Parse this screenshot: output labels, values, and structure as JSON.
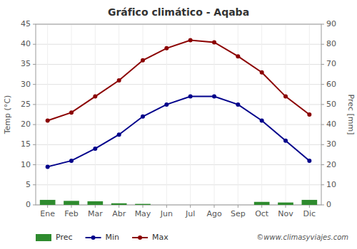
{
  "chart_data": {
    "type": "bar",
    "title": "Gráfico climático - Aqaba",
    "categories": [
      "Ene",
      "Feb",
      "Mar",
      "Abr",
      "May",
      "Jun",
      "Jul",
      "Ago",
      "Sep",
      "Oct",
      "Nov",
      "Dic"
    ],
    "series": [
      {
        "name": "Prec",
        "type": "bar",
        "axis": "y2",
        "color": "#2e8b2e",
        "values": [
          2.5,
          2.0,
          1.8,
          0.8,
          0.5,
          0,
          0,
          0,
          0,
          1.5,
          1.2,
          2.5
        ]
      },
      {
        "name": "Min",
        "type": "line",
        "marker": "circle",
        "color": "#00008b",
        "values": [
          9.5,
          11,
          14,
          17.5,
          22,
          25,
          27,
          27,
          25,
          21,
          16,
          11
        ]
      },
      {
        "name": "Max",
        "type": "line",
        "marker": "circle",
        "color": "#8b0000",
        "values": [
          21,
          23,
          27,
          31,
          36,
          39,
          41,
          40.5,
          37,
          33,
          27,
          22.5
        ]
      }
    ],
    "ylabel": "Temp (°C)",
    "y2label": "Prec [mm]",
    "ylim": [
      0,
      45
    ],
    "yticks": [
      0,
      5,
      10,
      15,
      20,
      25,
      30,
      35,
      40,
      45
    ],
    "y2lim": [
      0,
      90
    ],
    "y2ticks": [
      0,
      10,
      20,
      30,
      40,
      50,
      60,
      70,
      80,
      90
    ],
    "grid": true,
    "legend": "bottom",
    "annotations": [
      "©www.climasyviajes.com"
    ]
  }
}
